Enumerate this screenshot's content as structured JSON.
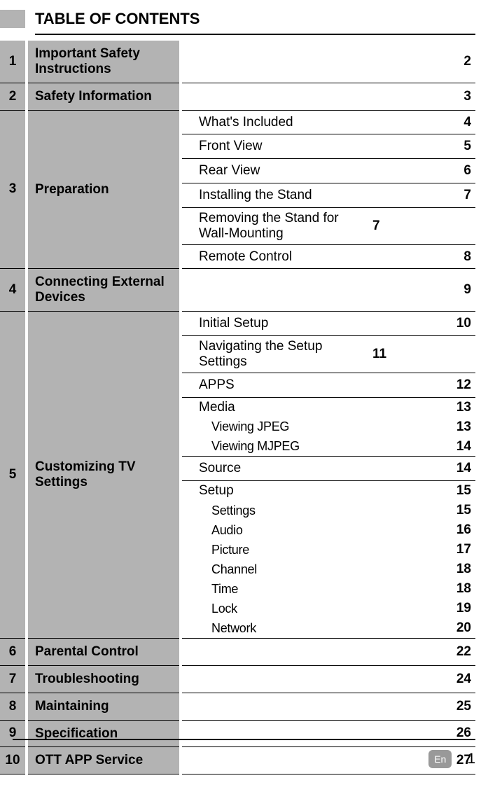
{
  "title": "TABLE OF CONTENTS",
  "footer": {
    "lang": "En",
    "page": "1"
  },
  "sections": [
    {
      "num": "1",
      "title": "Important Safety Instructions",
      "page": "2"
    },
    {
      "num": "2",
      "title": "Safety Information",
      "page": "3"
    },
    {
      "num": "3",
      "title": "Preparation",
      "subs": [
        {
          "label": "What's Included",
          "page": "4"
        },
        {
          "label": "Front View",
          "page": "5"
        },
        {
          "label": "Rear View",
          "page": "6"
        },
        {
          "label": "Installing the Stand",
          "page": "7"
        },
        {
          "label": "Removing the Stand for Wall-Mounting",
          "page": "7"
        },
        {
          "label": "Remote Control",
          "page": "8"
        }
      ]
    },
    {
      "num": "4",
      "title": "Connecting External Devices",
      "page": "9"
    },
    {
      "num": "5",
      "title": "Customizing TV Settings",
      "subs": [
        {
          "label": "Initial Setup",
          "page": "10"
        },
        {
          "label": "Navigating the Setup Settings",
          "page": "11"
        },
        {
          "label": "APPS",
          "page": "12"
        },
        {
          "label": "Media",
          "page": "13",
          "children": [
            {
              "label": "Viewing JPEG",
              "page": "13"
            },
            {
              "label": "Viewing MJPEG",
              "page": "14"
            }
          ]
        },
        {
          "label": "Source",
          "page": "14"
        },
        {
          "label": "Setup",
          "page": "15",
          "children": [
            {
              "label": "Settings",
              "page": "15"
            },
            {
              "label": "Audio",
              "page": "16"
            },
            {
              "label": "Picture",
              "page": "17"
            },
            {
              "label": "Channel",
              "page": "18"
            },
            {
              "label": "Time",
              "page": "18"
            },
            {
              "label": "Lock",
              "page": "19"
            },
            {
              "label": "Network",
              "page": "20"
            }
          ]
        }
      ]
    },
    {
      "num": "6",
      "title": "Parental Control",
      "page": "22"
    },
    {
      "num": "7",
      "title": "Troubleshooting",
      "page": "24"
    },
    {
      "num": "8",
      "title": "Maintaining",
      "page": "25"
    },
    {
      "num": "9",
      "title": "Specification",
      "page": "26"
    },
    {
      "num": "10",
      "title": "OTT APP Service",
      "page": "27"
    }
  ]
}
